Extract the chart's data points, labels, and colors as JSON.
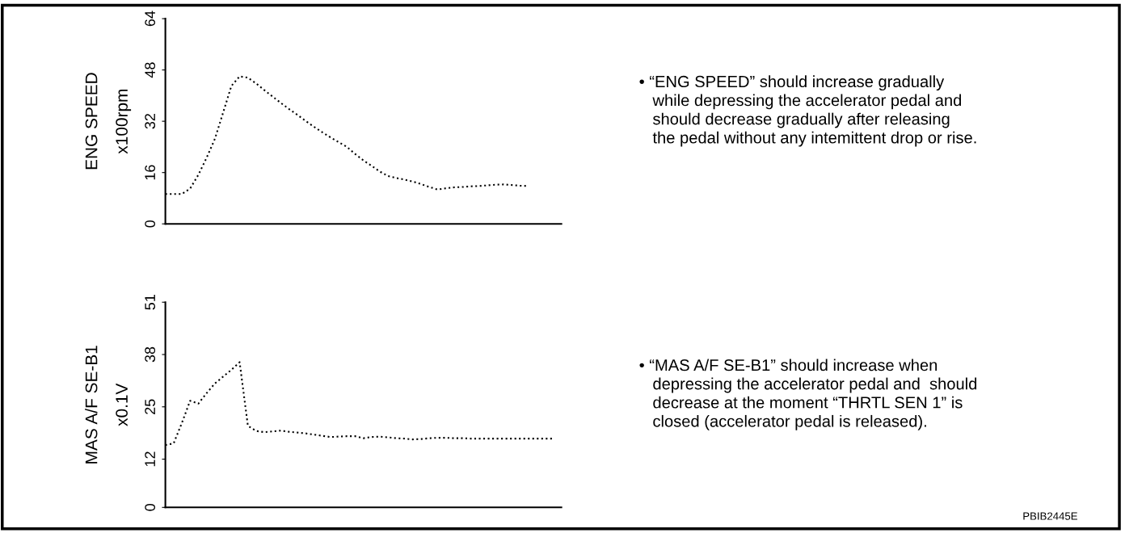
{
  "chart_data": [
    {
      "type": "line",
      "ylabel": "ENG SPEED\nx100rpm",
      "categories": [
        null,
        null,
        null,
        null,
        null,
        null,
        null,
        null,
        null,
        null,
        null,
        null,
        null,
        null,
        null,
        null,
        null,
        null,
        null,
        null,
        null,
        null,
        null,
        null,
        null,
        null,
        null,
        null,
        null,
        null,
        null,
        null,
        null,
        null,
        null,
        null,
        null,
        null,
        null,
        null,
        null,
        null,
        null,
        null,
        null,
        null,
        null,
        null,
        null
      ],
      "series": [
        {
          "color": "#000000",
          "values": [
            9.3,
            9.3,
            9.3,
            11,
            15.3,
            20.6,
            26.5,
            34.7,
            43,
            46,
            45.6,
            43.8,
            41.7,
            39.7,
            37.7,
            35.8,
            34,
            32.1,
            30.3,
            28.6,
            27,
            25.5,
            24,
            21.8,
            19.8,
            18.1,
            16.3,
            14.9,
            14.3,
            13.8,
            13.2,
            12.4,
            11.5,
            10.7,
            11.1,
            11.4,
            11.5,
            11.7,
            11.8,
            12,
            12.2,
            12.3,
            12.1,
            11.9,
            11.8,
            null,
            null,
            null,
            null
          ]
        }
      ],
      "ylim": [
        0,
        64
      ],
      "yticks": [
        0,
        16,
        32,
        48,
        64
      ],
      "line_style": "dotted",
      "grid": false,
      "annotations": [
        "• “ENG SPEED” should increase gradually\n   while depressing the accelerator pedal and\n   should decrease gradually after releasing\n   the pedal without any intemittent drop or rise."
      ]
    },
    {
      "type": "line",
      "ylabel": "MAS A/F SE-B1\nx0.1V",
      "categories": [
        null,
        null,
        null,
        null,
        null,
        null,
        null,
        null,
        null,
        null,
        null,
        null,
        null,
        null,
        null,
        null,
        null,
        null,
        null,
        null,
        null,
        null,
        null,
        null,
        null,
        null,
        null,
        null,
        null,
        null,
        null,
        null,
        null,
        null,
        null,
        null,
        null,
        null,
        null,
        null,
        null,
        null,
        null,
        null,
        null,
        null,
        null,
        null,
        null
      ],
      "series": [
        {
          "color": "#000000",
          "values": [
            15.5,
            15.9,
            21,
            26.5,
            25.8,
            28.4,
            30.8,
            32.5,
            34.2,
            36.1,
            20.3,
            19,
            18.7,
            18.9,
            19.1,
            18.8,
            18.6,
            18.4,
            18.1,
            17.8,
            17.5,
            17.6,
            17.7,
            17.7,
            17.2,
            17.5,
            17.6,
            17.4,
            17.2,
            17.1,
            16.9,
            17,
            17.2,
            17.3,
            17.3,
            17.2,
            17.2,
            17.1,
            17.1,
            17.1,
            17.1,
            17.1,
            17.1,
            17.1,
            17.1,
            17.1,
            17.1,
            17.1,
            null
          ]
        }
      ],
      "ylim": [
        0,
        51
      ],
      "yticks": [
        0,
        12,
        25,
        38,
        51
      ],
      "line_style": "dotted",
      "grid": false,
      "annotations": [
        "• “MAS A/F SE-B1” should increase when\n   depressing the accelerator pedal and  should\n   decrease at the moment “THRTL SEN 1” is\n   closed (accelerator pedal is released).",
        "PBIB2445E"
      ]
    }
  ]
}
